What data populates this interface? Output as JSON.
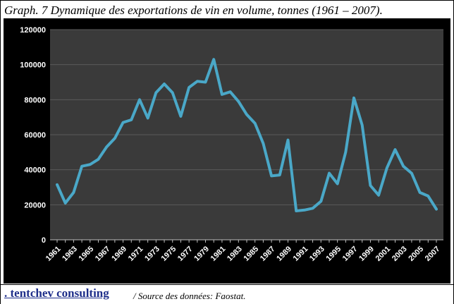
{
  "header": {
    "title": "Graph. 7 Dynamique des exportations de vin en volume, tonnes (1961 – 2007)."
  },
  "footer": {
    "brand": ". tentchev consulting",
    "source": "/ Source des données: Faostat."
  },
  "colors": {
    "panel_bg": "#000000",
    "plot_bg": "#3a3a3a",
    "grid": "#5a5a5a",
    "line": "#4aa8c8",
    "axis_text": "#ffffff",
    "brand": "#1e2e8a"
  },
  "chart_data": {
    "type": "line",
    "title": "Graph. 7 Dynamique des exportations de vin en volume, tonnes (1961 – 2007).",
    "xlabel": "",
    "ylabel": "",
    "ylim": [
      0,
      120000
    ],
    "yticks": [
      0,
      20000,
      40000,
      60000,
      80000,
      100000,
      120000
    ],
    "ytick_labels": [
      "0",
      "20000",
      "40000",
      "60000",
      "80000",
      "100000",
      "120000"
    ],
    "xtick_labels": [
      "1961",
      "1963",
      "1965",
      "1967",
      "1969",
      "1971",
      "1973",
      "1975",
      "1977",
      "1979",
      "1981",
      "1983",
      "1985",
      "1987",
      "1989",
      "1991",
      "1993",
      "1995",
      "1997",
      "1999",
      "2001",
      "2003",
      "2005",
      "2007"
    ],
    "grid": true,
    "legend": "none",
    "x": [
      1961,
      1962,
      1963,
      1964,
      1965,
      1966,
      1967,
      1968,
      1969,
      1970,
      1971,
      1972,
      1973,
      1974,
      1975,
      1976,
      1977,
      1978,
      1979,
      1980,
      1981,
      1982,
      1983,
      1984,
      1985,
      1986,
      1987,
      1988,
      1989,
      1990,
      1991,
      1992,
      1993,
      1994,
      1995,
      1996,
      1997,
      1998,
      1999,
      2000,
      2001,
      2002,
      2003,
      2004,
      2005,
      2006,
      2007
    ],
    "series": [
      {
        "values": [
          31500,
          21000,
          27000,
          42000,
          43000,
          46000,
          53000,
          58000,
          67000,
          68500,
          80000,
          69500,
          84000,
          89000,
          84000,
          70500,
          87000,
          90500,
          90000,
          103000,
          83000,
          84500,
          79000,
          71500,
          66500,
          55000,
          36500,
          37000,
          57000,
          16500,
          17000,
          18000,
          22000,
          38000,
          32000,
          50000,
          81000,
          65500,
          31000,
          25500,
          41000,
          51500,
          42000,
          38000,
          27000,
          25000,
          17500
        ]
      }
    ]
  }
}
